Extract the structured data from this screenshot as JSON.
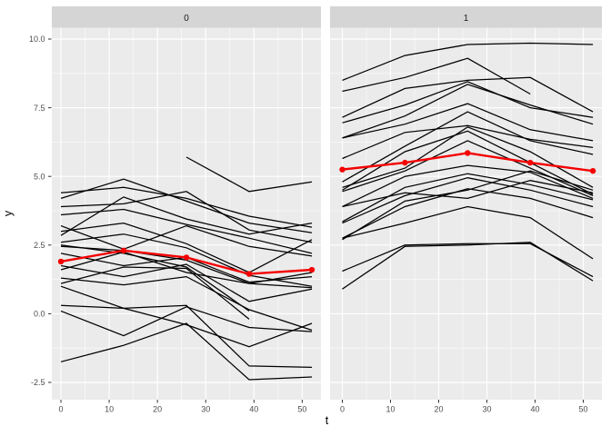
{
  "figure": {
    "kind": "ggplot-faceted-spaghetti-plot",
    "colors": {
      "panel_bg": "#EBEBEB",
      "strip_bg": "#D5D5D5",
      "grid": "#FFFFFF",
      "tick_text": "#4D4D4D",
      "axis_title": "#000000",
      "tick_mark": "#333333",
      "mean_line": "#F40000",
      "subject_line": "#000000"
    }
  },
  "chart_data": {
    "type": "line",
    "title": "",
    "xlabel": "t",
    "ylabel": "y",
    "facet_labels": [
      "0",
      "1"
    ],
    "x": [
      0,
      13,
      26,
      39,
      52
    ],
    "x_ticks": [
      {
        "label": "0",
        "value": 0
      },
      {
        "label": "10",
        "value": 10
      },
      {
        "label": "20",
        "value": 20
      },
      {
        "label": "30",
        "value": 30
      },
      {
        "label": "40",
        "value": 40
      },
      {
        "label": "50",
        "value": 50
      }
    ],
    "y_ticks": [
      {
        "label": "10.0",
        "value": 10.0
      },
      {
        "label": "7.5",
        "value": 7.5
      },
      {
        "label": "5.0",
        "value": 5.0
      },
      {
        "label": "2.5",
        "value": 2.5
      },
      {
        "label": "0.0",
        "value": 0.0
      },
      {
        "label": "-2.5",
        "value": -2.5
      }
    ],
    "x_minor_breaks": [
      5,
      15,
      25,
      35,
      45
    ],
    "y_minor_breaks": [
      -1.25,
      1.25,
      3.75,
      6.25,
      8.75
    ],
    "xlim": [
      -1.9,
      53.9
    ],
    "ylim": [
      -3.1,
      10.45
    ],
    "grid": true,
    "legend": "none",
    "note": "black subject trajectories estimated from pixels; red series is the per-facet mean profile",
    "panels": [
      {
        "label": "0",
        "mean_series": {
          "name": "mean",
          "values": [
            1.9,
            2.3,
            2.05,
            1.45,
            1.6
          ]
        },
        "subject_series": [
          [
            4.4,
            4.6,
            4.2,
            3.55,
            3.15
          ],
          [
            4.2,
            4.9,
            4.1,
            3.3,
            2.95
          ],
          [
            3.9,
            4.0,
            4.45,
            3.05,
            2.6
          ],
          [
            3.6,
            3.8,
            3.25,
            2.75,
            2.2
          ],
          [
            3.2,
            2.35,
            3.2,
            2.45,
            2.1
          ],
          [
            3.0,
            3.3,
            2.55,
            1.5,
            2.7
          ],
          [
            2.85,
            4.25,
            3.45,
            2.9,
            3.3
          ],
          [
            2.6,
            2.9,
            2.4,
            1.4,
            1.0
          ],
          [
            2.45,
            2.3,
            1.95,
            1.1,
            0.95
          ],
          [
            2.2,
            1.75,
            2.05,
            1.15,
            1.35
          ],
          [
            1.75,
            1.35,
            1.8,
            0.45,
            0.9
          ],
          [
            1.6,
            2.25,
            1.5,
            1.1,
            1.5
          ],
          [
            1.3,
            1.05,
            1.35,
            0.15,
            -0.6
          ],
          [
            1.1,
            1.7,
            1.65,
            -0.2,
            null
          ],
          [
            2.5,
            2.2,
            1.7,
            0.1,
            null
          ],
          [
            1.0,
            0.2,
            -0.4,
            -1.2,
            -0.35
          ],
          [
            0.3,
            0.2,
            0.3,
            -1.9,
            -1.95
          ],
          [
            0.1,
            -0.8,
            0.25,
            -0.5,
            -0.65
          ],
          [
            -1.75,
            -1.15,
            -0.35,
            -2.4,
            -2.3
          ],
          [
            null,
            null,
            5.7,
            4.45,
            4.8
          ]
        ]
      },
      {
        "label": "1",
        "mean_series": {
          "name": "mean",
          "values": [
            5.25,
            5.5,
            5.85,
            5.5,
            5.2
          ]
        },
        "subject_series": [
          [
            8.5,
            9.4,
            9.8,
            9.85,
            9.8
          ],
          [
            8.1,
            8.6,
            9.3,
            8.0,
            null
          ],
          [
            7.15,
            8.2,
            8.5,
            8.6,
            7.35
          ],
          [
            6.95,
            7.6,
            8.45,
            7.5,
            7.15
          ],
          [
            6.4,
            7.2,
            8.35,
            7.6,
            6.9
          ],
          [
            6.4,
            6.9,
            7.65,
            6.7,
            6.3
          ],
          [
            5.65,
            6.6,
            6.85,
            6.35,
            6.05
          ],
          [
            4.8,
            6.1,
            7.35,
            6.3,
            5.8
          ],
          [
            4.6,
            5.3,
            6.8,
            5.9,
            4.6
          ],
          [
            4.5,
            5.9,
            6.65,
            5.5,
            4.35
          ],
          [
            4.45,
            5.2,
            6.3,
            5.3,
            4.3
          ],
          [
            3.9,
            5.0,
            5.4,
            5.15,
            4.2
          ],
          [
            3.35,
            4.6,
            5.1,
            4.7,
            4.15
          ],
          [
            3.3,
            4.3,
            4.95,
            4.5,
            3.9
          ],
          [
            2.75,
            3.9,
            4.55,
            4.2,
            3.5
          ],
          [
            2.7,
            4.1,
            4.5,
            5.2,
            4.5
          ],
          [
            2.75,
            3.3,
            3.9,
            3.5,
            2.0
          ],
          [
            1.55,
            2.5,
            2.55,
            2.55,
            1.35
          ],
          [
            0.9,
            2.45,
            2.5,
            2.6,
            1.2
          ],
          [
            3.9,
            4.4,
            4.2,
            4.85,
            4.4
          ]
        ]
      }
    ]
  }
}
